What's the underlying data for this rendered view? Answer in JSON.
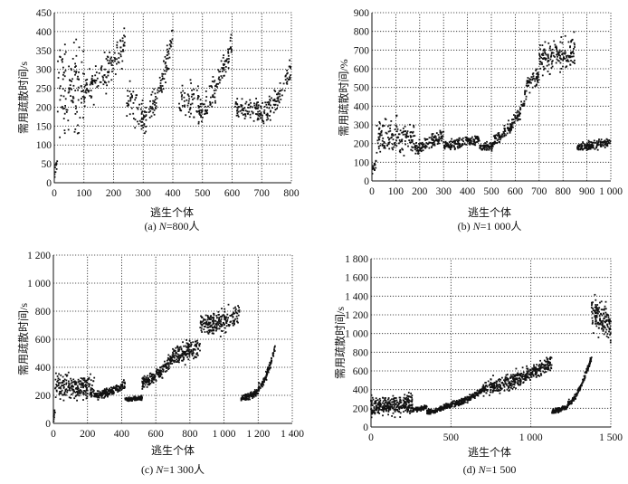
{
  "chart_data": [
    {
      "type": "scatter",
      "caption": "(a) N=800人",
      "caption_prefix": "(a) ",
      "caption_n": "N",
      "caption_suffix": "=800人",
      "xlabel": "逃生个体",
      "ylabel": "需用疏散时间/s",
      "xlim": [
        0,
        800
      ],
      "ylim": [
        0,
        450
      ],
      "xticks": [
        "0",
        "100",
        "200",
        "300",
        "400",
        "500",
        "600",
        "700",
        "800"
      ],
      "xtick_values": [
        0,
        100,
        200,
        300,
        400,
        500,
        600,
        700,
        800
      ],
      "yticks": [
        "0",
        "50",
        "100",
        "150",
        "200",
        "250",
        "300",
        "350",
        "400",
        "450"
      ],
      "ytick_values": [
        0,
        50,
        100,
        150,
        200,
        250,
        300,
        350,
        400,
        450
      ],
      "grid": true,
      "clusters_note": "points summarized as clusters: [x_start, x_end, y_start, y_end, y_spread, count]",
      "clusters": [
        [
          0,
          10,
          20,
          60,
          20,
          10
        ],
        [
          10,
          100,
          250,
          250,
          100,
          110
        ],
        [
          100,
          240,
          250,
          370,
          40,
          130
        ],
        [
          240,
          300,
          220,
          180,
          40,
          45
        ],
        [
          290,
          400,
          160,
          380,
          30,
          110
        ],
        [
          420,
          490,
          210,
          230,
          40,
          55
        ],
        [
          480,
          600,
          180,
          370,
          30,
          120
        ],
        [
          610,
          700,
          190,
          190,
          25,
          90
        ],
        [
          700,
          800,
          180,
          300,
          30,
          100
        ]
      ]
    },
    {
      "type": "scatter",
      "caption": "(b) N=1 000人",
      "caption_prefix": "(b) ",
      "caption_n": "N",
      "caption_suffix": "=1 000人",
      "xlabel": "逃生个体",
      "ylabel": "需用疏散时间/%",
      "xlim": [
        0,
        1000
      ],
      "ylim": [
        0,
        900
      ],
      "xticks": [
        "0",
        "100",
        "200",
        "300",
        "400",
        "500",
        "600",
        "700",
        "800",
        "900",
        "1 000"
      ],
      "xtick_values": [
        0,
        100,
        200,
        300,
        400,
        500,
        600,
        700,
        800,
        900,
        1000
      ],
      "yticks": [
        "0",
        "100",
        "200",
        "300",
        "400",
        "500",
        "600",
        "700",
        "800",
        "900"
      ],
      "ytick_values": [
        0,
        100,
        200,
        300,
        400,
        500,
        600,
        700,
        800,
        900
      ],
      "grid": true,
      "clusters": [
        [
          0,
          20,
          60,
          100,
          20,
          15
        ],
        [
          20,
          180,
          230,
          230,
          80,
          150
        ],
        [
          180,
          300,
          180,
          250,
          30,
          120
        ],
        [
          300,
          450,
          190,
          230,
          25,
          150
        ],
        [
          450,
          510,
          180,
          190,
          20,
          60
        ],
        [
          510,
          640,
          220,
          420,
          30,
          130
        ],
        [
          640,
          700,
          500,
          570,
          50,
          60
        ],
        [
          700,
          850,
          650,
          700,
          70,
          160
        ],
        [
          860,
          1000,
          185,
          210,
          20,
          140
        ]
      ]
    },
    {
      "type": "scatter",
      "caption": "(c) N=1 300人",
      "caption_prefix": "(c) ",
      "caption_n": "N",
      "caption_suffix": "=1 300人",
      "xlabel": "逃生个体",
      "ylabel": "需用疏散时间/s",
      "xlim": [
        0,
        1400
      ],
      "ylim": [
        0,
        1200
      ],
      "xticks": [
        "0",
        "200",
        "400",
        "600",
        "800",
        "1 000",
        "1 200",
        "1 400"
      ],
      "xtick_values": [
        0,
        200,
        400,
        600,
        800,
        1000,
        1200,
        1400
      ],
      "yticks": [
        "0",
        "200",
        "400",
        "600",
        "800",
        "1 000",
        "1 200"
      ],
      "ytick_values": [
        0,
        200,
        400,
        600,
        800,
        1000,
        1200
      ],
      "grid": true,
      "clusters": [
        [
          0,
          10,
          40,
          100,
          30,
          10
        ],
        [
          10,
          240,
          260,
          250,
          70,
          220
        ],
        [
          240,
          420,
          200,
          280,
          25,
          170
        ],
        [
          420,
          520,
          170,
          185,
          15,
          100
        ],
        [
          520,
          700,
          290,
          470,
          40,
          180
        ],
        [
          700,
          860,
          480,
          560,
          60,
          160
        ],
        [
          860,
          1090,
          700,
          770,
          70,
          220
        ],
        [
          1100,
          1200,
          180,
          230,
          20,
          100
        ],
        [
          1200,
          1300,
          250,
          550,
          25,
          100
        ]
      ]
    },
    {
      "type": "scatter",
      "caption": "(d) N=1 500",
      "caption_prefix": "(d) ",
      "caption_n": "N",
      "caption_suffix": "=1 500",
      "xlabel": "逃生个体",
      "ylabel": "需用疏散时间/s",
      "xlim": [
        0,
        1500
      ],
      "ylim": [
        0,
        1800
      ],
      "xticks": [
        "0",
        "500",
        "1 000",
        "1 500"
      ],
      "xtick_values": [
        0,
        500,
        1000,
        1500
      ],
      "yticks": [
        "0",
        "200",
        "400",
        "600",
        "800",
        "1 000",
        "1 200",
        "1 400",
        "1 600",
        "1 800"
      ],
      "ytick_values": [
        0,
        200,
        400,
        600,
        800,
        1000,
        1200,
        1400,
        1600,
        1800
      ],
      "grid": true,
      "clusters": [
        [
          0,
          260,
          220,
          250,
          80,
          300
        ],
        [
          260,
          350,
          180,
          220,
          20,
          80
        ],
        [
          350,
          450,
          160,
          200,
          20,
          120
        ],
        [
          450,
          700,
          220,
          400,
          30,
          250
        ],
        [
          700,
          1130,
          420,
          700,
          70,
          400
        ],
        [
          1130,
          1230,
          170,
          220,
          20,
          100
        ],
        [
          1230,
          1380,
          250,
          750,
          25,
          150
        ],
        [
          1380,
          1500,
          1200,
          1050,
          150,
          150
        ]
      ]
    }
  ]
}
